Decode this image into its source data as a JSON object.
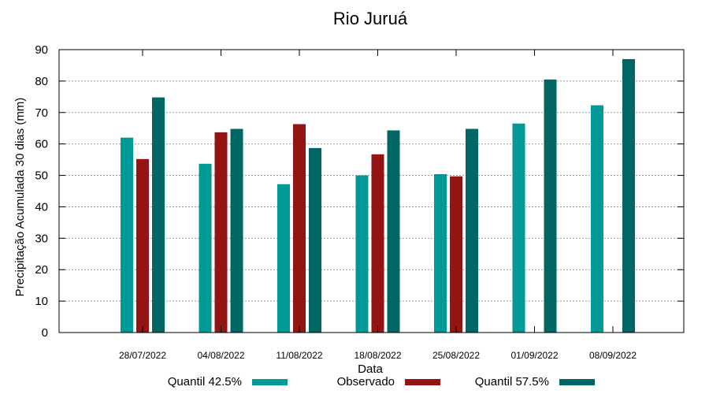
{
  "chart_data": {
    "type": "bar",
    "title": "Rio Juruá",
    "xlabel": "Data",
    "ylabel": "Precipitação Acumulada 30 dias (mm)",
    "ylim": [
      0,
      90
    ],
    "yticks": [
      0,
      10,
      20,
      30,
      40,
      50,
      60,
      70,
      80,
      90
    ],
    "grid": true,
    "legend_position": "bottom",
    "categories": [
      "28/07/2022",
      "04/08/2022",
      "11/08/2022",
      "18/08/2022",
      "25/08/2022",
      "01/09/2022",
      "08/09/2022"
    ],
    "series": [
      {
        "name": "Quantil 42.5%",
        "color": "#009a96",
        "values": [
          62,
          53.7,
          47.2,
          50,
          50.4,
          66.5,
          72.3
        ]
      },
      {
        "name": "Observado",
        "color": "#941313",
        "values": [
          55.2,
          63.7,
          66.3,
          56.7,
          49.7,
          null,
          null
        ]
      },
      {
        "name": "Quantil 57.5%",
        "color": "#006764",
        "values": [
          74.8,
          64.8,
          58.7,
          64.3,
          64.8,
          80.5,
          87
        ]
      }
    ]
  }
}
